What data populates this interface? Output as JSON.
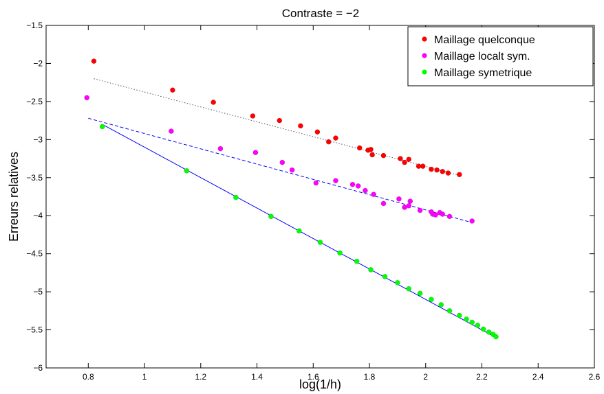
{
  "chart_data": {
    "type": "scatter",
    "title": "Contraste = −2",
    "xlabel": "log(1/h)",
    "ylabel": "Erreurs relatives",
    "xlim": [
      0.65,
      2.6
    ],
    "ylim": [
      -6,
      -1.5
    ],
    "xticks": [
      0.8,
      1,
      1.2,
      1.4,
      1.6,
      1.8,
      2,
      2.2,
      2.4,
      2.6
    ],
    "xtick_labels": [
      "0.8",
      "1",
      "1.2",
      "1.4",
      "1.6",
      "1.8",
      "2",
      "2.2",
      "2.4",
      "2.6"
    ],
    "yticks": [
      -1.5,
      -2,
      -2.5,
      -3,
      -3.5,
      -4,
      -4.5,
      -5,
      -5.5,
      -6
    ],
    "ytick_labels": [
      "−1.5",
      "−2",
      "−2.5",
      "−3",
      "−3.5",
      "−4",
      "−4.5",
      "−5",
      "−5.5",
      "−6"
    ],
    "grid": false,
    "legend_position": "top-right",
    "series": [
      {
        "name": "Maillage quelconque",
        "color": "#ff0000",
        "marker": "circle",
        "fit_style": "dotted",
        "x": [
          0.82,
          1.1,
          1.245,
          1.385,
          1.48,
          1.555,
          1.615,
          1.655,
          1.68,
          1.765,
          1.795,
          1.805,
          1.81,
          1.85,
          1.91,
          1.925,
          1.94,
          1.975,
          1.99,
          2.02,
          2.04,
          2.06,
          2.08,
          2.12
        ],
        "y": [
          -1.97,
          -2.35,
          -2.51,
          -2.69,
          -2.75,
          -2.82,
          -2.9,
          -3.03,
          -2.98,
          -3.11,
          -3.14,
          -3.13,
          -3.2,
          -3.21,
          -3.25,
          -3.3,
          -3.26,
          -3.35,
          -3.35,
          -3.39,
          -3.4,
          -3.42,
          -3.44,
          -3.46
        ],
        "fit": {
          "x": [
            0.82,
            2.12
          ],
          "y": [
            -2.2,
            -3.47
          ]
        }
      },
      {
        "name": "Maillage localt sym.",
        "color": "#ff00ff",
        "marker": "circle",
        "fit_style": "dashed",
        "x": [
          0.795,
          1.095,
          1.27,
          1.395,
          1.49,
          1.525,
          1.61,
          1.68,
          1.74,
          1.76,
          1.785,
          1.815,
          1.85,
          1.905,
          1.925,
          1.94,
          1.945,
          1.98,
          2.02,
          2.025,
          2.035,
          2.05,
          2.06,
          2.085,
          2.165
        ],
        "y": [
          -2.45,
          -2.89,
          -3.12,
          -3.17,
          -3.3,
          -3.4,
          -3.57,
          -3.54,
          -3.59,
          -3.61,
          -3.67,
          -3.72,
          -3.84,
          -3.78,
          -3.89,
          -3.87,
          -3.81,
          -3.93,
          -3.95,
          -3.98,
          -3.99,
          -3.96,
          -3.98,
          -4.01,
          -4.07
        ],
        "fit": {
          "x": [
            0.8,
            2.165
          ],
          "y": [
            -2.72,
            -4.09
          ]
        }
      },
      {
        "name": "Maillage symetrique",
        "color": "#00ff00",
        "marker": "circle",
        "fit_style": "solid",
        "x": [
          0.85,
          1.15,
          1.325,
          1.45,
          1.55,
          1.625,
          1.695,
          1.755,
          1.805,
          1.855,
          1.9,
          1.94,
          1.98,
          2.02,
          2.055,
          2.085,
          2.12,
          2.145,
          2.165,
          2.185,
          2.205,
          2.225,
          2.24,
          2.25
        ],
        "y": [
          -2.83,
          -3.41,
          -3.76,
          -4.01,
          -4.2,
          -4.35,
          -4.49,
          -4.6,
          -4.71,
          -4.8,
          -4.88,
          -4.96,
          -5.02,
          -5.1,
          -5.17,
          -5.25,
          -5.31,
          -5.36,
          -5.4,
          -5.44,
          -5.49,
          -5.53,
          -5.56,
          -5.59
        ],
        "fit": {
          "x": [
            0.85,
            2.25
          ],
          "y": [
            -2.8,
            -5.6
          ]
        }
      }
    ]
  }
}
